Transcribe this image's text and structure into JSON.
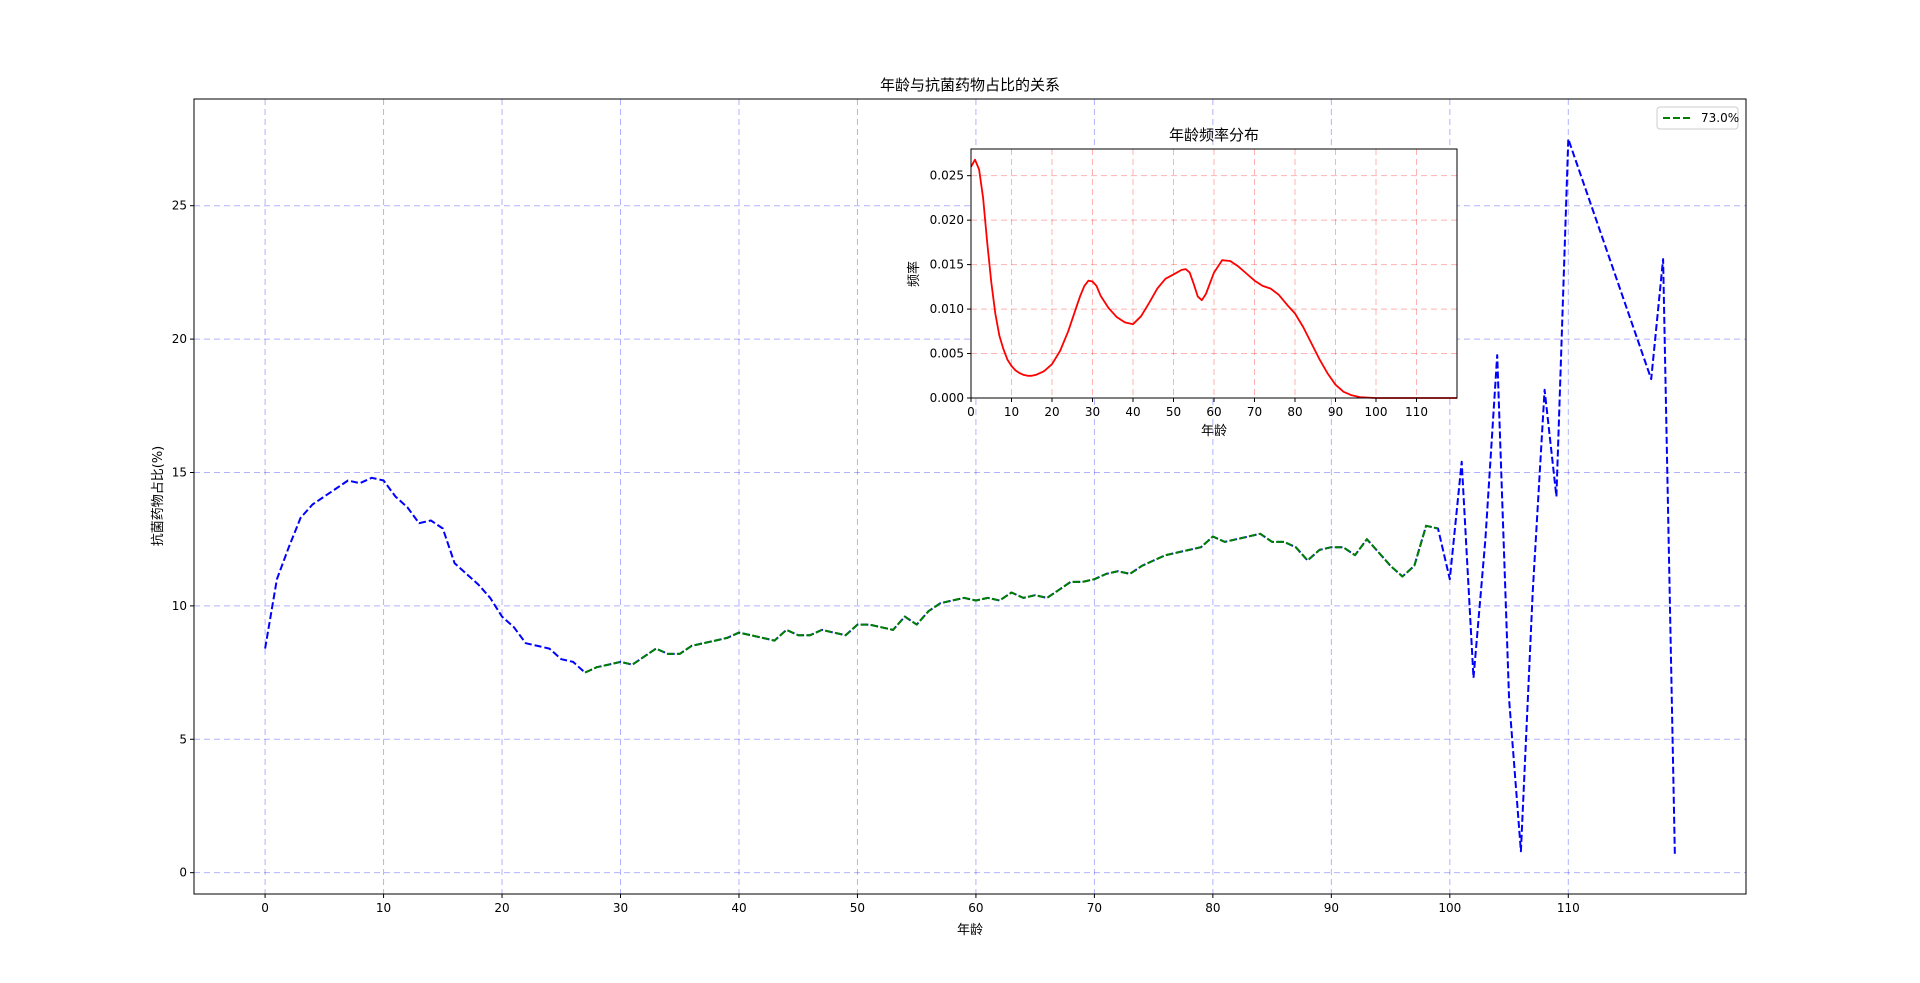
{
  "chart_data": [
    {
      "type": "line",
      "title": "年龄与抗菌药物占比的关系",
      "xlabel": "年龄",
      "ylabel": "抗菌药物占比(%)",
      "xlim": [
        -6,
        125
      ],
      "ylim": [
        -0.8,
        29
      ],
      "xticks": [
        0,
        10,
        20,
        30,
        40,
        50,
        60,
        70,
        80,
        90,
        100,
        110
      ],
      "yticks": [
        0,
        5,
        10,
        15,
        20,
        25
      ],
      "grid": true,
      "legend_position": "top-right",
      "series": [
        {
          "role": "all-ages",
          "color": "#0000ff",
          "linestyle": "dashed",
          "x": [
            0,
            1,
            2,
            3,
            4,
            5,
            6,
            7,
            8,
            9,
            10,
            11,
            12,
            13,
            14,
            15,
            16,
            17,
            18,
            19,
            20,
            21,
            22,
            23,
            24,
            25,
            26,
            27,
            28,
            29,
            30,
            31,
            32,
            33,
            34,
            35,
            36,
            37,
            38,
            39,
            40,
            41,
            42,
            43,
            44,
            45,
            46,
            47,
            48,
            49,
            50,
            51,
            52,
            53,
            54,
            55,
            56,
            57,
            58,
            59,
            60,
            61,
            62,
            63,
            64,
            65,
            66,
            67,
            68,
            69,
            70,
            71,
            72,
            73,
            74,
            75,
            76,
            77,
            78,
            79,
            80,
            81,
            82,
            83,
            84,
            85,
            86,
            87,
            88,
            89,
            90,
            91,
            92,
            93,
            94,
            95,
            96,
            97,
            98,
            99,
            100,
            101,
            102,
            103,
            104,
            105,
            106,
            107,
            108,
            109,
            110,
            117,
            118,
            119
          ],
          "y": [
            8.4,
            11.0,
            12.2,
            13.3,
            13.8,
            14.1,
            14.4,
            14.7,
            14.6,
            14.8,
            14.7,
            14.1,
            13.7,
            13.1,
            13.2,
            12.9,
            11.6,
            11.2,
            10.8,
            10.3,
            9.6,
            9.2,
            8.6,
            8.5,
            8.4,
            8.0,
            7.9,
            7.5,
            7.7,
            7.8,
            7.9,
            7.8,
            8.1,
            8.4,
            8.2,
            8.2,
            8.5,
            8.6,
            8.7,
            8.8,
            9.0,
            8.9,
            8.8,
            8.7,
            9.1,
            8.9,
            8.9,
            9.1,
            9.0,
            8.9,
            9.3,
            9.3,
            9.2,
            9.1,
            9.6,
            9.3,
            9.8,
            10.1,
            10.2,
            10.3,
            10.2,
            10.3,
            10.2,
            10.5,
            10.3,
            10.4,
            10.3,
            10.6,
            10.9,
            10.9,
            11.0,
            11.2,
            11.3,
            11.2,
            11.5,
            11.7,
            11.9,
            12.0,
            12.1,
            12.2,
            12.6,
            12.4,
            12.5,
            12.6,
            12.7,
            12.4,
            12.4,
            12.2,
            11.7,
            12.1,
            12.2,
            12.2,
            11.9,
            12.5,
            12.0,
            11.5,
            11.1,
            11.5,
            13.0,
            12.9,
            11.0,
            15.4,
            7.3,
            12.5,
            19.4,
            6.5,
            0.8,
            10.5,
            18.1,
            14.1,
            27.5,
            18.5,
            23.0,
            0.6
          ]
        },
        {
          "role": "middle-73pct",
          "name": "73.0%",
          "color": "#008000",
          "linestyle": "dashed",
          "x": [
            27,
            28,
            29,
            30,
            31,
            32,
            33,
            34,
            35,
            36,
            37,
            38,
            39,
            40,
            41,
            42,
            43,
            44,
            45,
            46,
            47,
            48,
            49,
            50,
            51,
            52,
            53,
            54,
            55,
            56,
            57,
            58,
            59,
            60,
            61,
            62,
            63,
            64,
            65,
            66,
            67,
            68,
            69,
            70,
            71,
            72,
            73,
            74,
            75,
            76,
            77,
            78,
            79,
            80,
            81,
            82,
            83,
            84,
            85,
            86,
            87,
            88,
            89,
            90,
            91,
            92,
            93,
            94,
            95,
            96,
            97,
            98,
            99
          ],
          "y": [
            7.5,
            7.7,
            7.8,
            7.9,
            7.8,
            8.1,
            8.4,
            8.2,
            8.2,
            8.5,
            8.6,
            8.7,
            8.8,
            9.0,
            8.9,
            8.8,
            8.7,
            9.1,
            8.9,
            8.9,
            9.1,
            9.0,
            8.9,
            9.3,
            9.3,
            9.2,
            9.1,
            9.6,
            9.3,
            9.8,
            10.1,
            10.2,
            10.3,
            10.2,
            10.3,
            10.2,
            10.5,
            10.3,
            10.4,
            10.3,
            10.6,
            10.9,
            10.9,
            11.0,
            11.2,
            11.3,
            11.2,
            11.5,
            11.7,
            11.9,
            12.0,
            12.1,
            12.2,
            12.6,
            12.4,
            12.5,
            12.6,
            12.7,
            12.4,
            12.4,
            12.2,
            11.7,
            12.1,
            12.2,
            12.2,
            11.9,
            12.5,
            12.0,
            11.5,
            11.1,
            11.5,
            13.0,
            12.9
          ]
        }
      ]
    },
    {
      "type": "line",
      "title": "年龄频率分布",
      "xlabel": "年龄",
      "ylabel": "频率",
      "xlim": [
        0,
        120
      ],
      "ylim": [
        0,
        0.028
      ],
      "xticks": [
        0,
        10,
        20,
        30,
        40,
        50,
        60,
        70,
        80,
        90,
        100,
        110
      ],
      "yticks": [
        "0.000",
        "0.005",
        "0.010",
        "0.015",
        "0.020",
        "0.025"
      ],
      "grid": true,
      "series": [
        {
          "role": "density",
          "color": "#ff0000",
          "linestyle": "solid",
          "x": [
            0,
            1,
            2,
            3,
            4,
            5,
            6,
            7,
            8,
            9,
            10,
            11,
            12,
            13,
            14,
            15,
            16,
            18,
            20,
            22,
            24,
            26,
            27,
            28,
            29,
            30,
            31,
            32,
            34,
            36,
            38,
            40,
            42,
            44,
            46,
            48,
            50,
            52,
            53,
            54,
            55,
            56,
            57,
            58,
            60,
            62,
            64,
            66,
            68,
            70,
            72,
            74,
            76,
            78,
            80,
            82,
            84,
            86,
            88,
            90,
            92,
            94,
            96,
            98,
            100,
            105,
            110,
            120
          ],
          "y": [
            0.026,
            0.0268,
            0.0257,
            0.0225,
            0.0175,
            0.013,
            0.0095,
            0.007,
            0.0055,
            0.0043,
            0.0036,
            0.0031,
            0.0028,
            0.0026,
            0.0025,
            0.0025,
            0.0026,
            0.003,
            0.0038,
            0.0053,
            0.0075,
            0.0102,
            0.0115,
            0.0126,
            0.0132,
            0.0131,
            0.0126,
            0.0115,
            0.0101,
            0.0091,
            0.0085,
            0.0083,
            0.0092,
            0.0107,
            0.0123,
            0.0134,
            0.0139,
            0.0144,
            0.0145,
            0.0141,
            0.0128,
            0.0114,
            0.011,
            0.0117,
            0.0141,
            0.0155,
            0.0154,
            0.0148,
            0.014,
            0.0132,
            0.0126,
            0.0123,
            0.0116,
            0.0105,
            0.0095,
            0.008,
            0.0062,
            0.0044,
            0.0028,
            0.0015,
            0.0007,
            0.0003,
            0.0001,
            5e-05,
            0,
            0,
            0,
            0
          ]
        }
      ]
    }
  ]
}
